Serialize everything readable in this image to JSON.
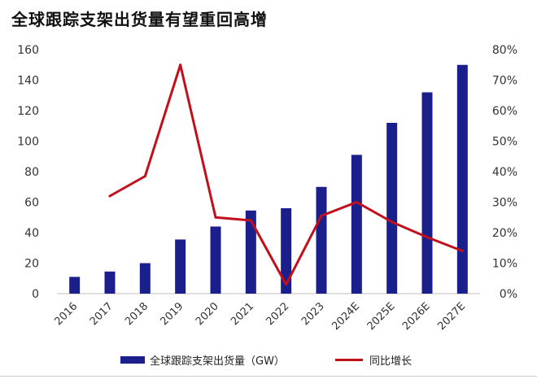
{
  "title": "全球跟踪支架出货量有望重回高增",
  "colors": {
    "bar": "#1a1f8c",
    "line": "#c0101c"
  },
  "chart_data": {
    "type": "bar+line",
    "categories": [
      "2016",
      "2017",
      "2018",
      "2019",
      "2020",
      "2021",
      "2022",
      "2023",
      "2024E",
      "2025E",
      "2026E",
      "2027E"
    ],
    "series": [
      {
        "name": "全球跟踪支架出货量（GW）",
        "type": "bar",
        "axis": "left",
        "values": [
          11,
          14.5,
          20,
          35.5,
          44,
          54.5,
          56,
          70,
          91,
          112,
          132,
          150
        ]
      },
      {
        "name": "同比增长",
        "type": "line",
        "axis": "right",
        "values": [
          null,
          32,
          38.5,
          75,
          25,
          24,
          3,
          25.5,
          30,
          23.5,
          18.5,
          14
        ]
      }
    ],
    "y_left": {
      "min": 0,
      "max": 160,
      "ticks": [
        "0",
        "20",
        "40",
        "60",
        "80",
        "100",
        "120",
        "140",
        "160"
      ]
    },
    "y_right": {
      "min": 0,
      "max": 80,
      "ticks": [
        "0%",
        "10%",
        "20%",
        "30%",
        "40%",
        "50%",
        "60%",
        "70%",
        "80%"
      ]
    },
    "grid": false,
    "legend_position": "bottom"
  }
}
